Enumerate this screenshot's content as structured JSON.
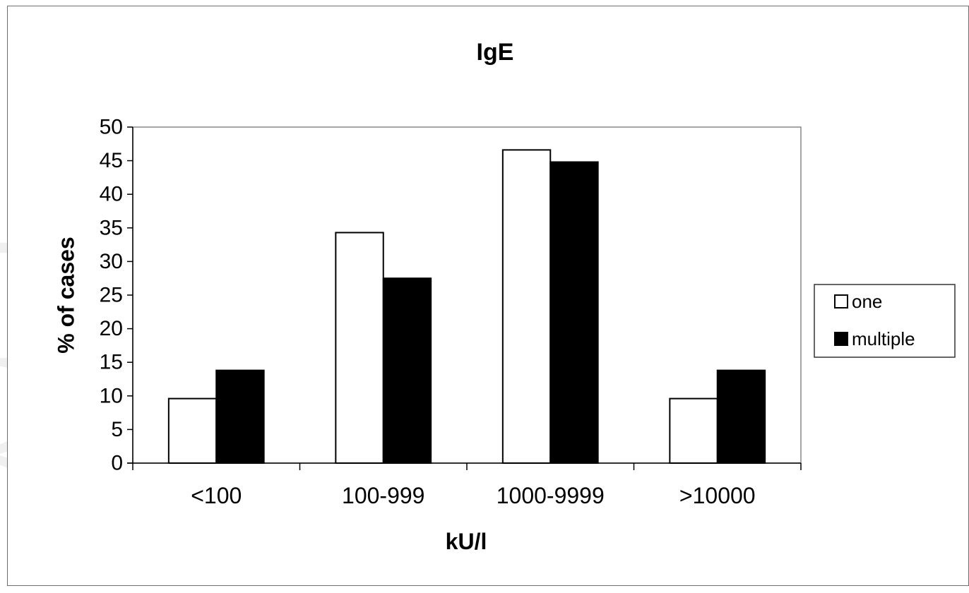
{
  "watermark": "Article",
  "chart_data": {
    "type": "bar",
    "title": "IgE",
    "xlabel": "kU/l",
    "ylabel": "% of cases",
    "ylim": [
      0,
      50
    ],
    "yticks": [
      0,
      5,
      10,
      15,
      20,
      25,
      30,
      35,
      40,
      45,
      50
    ],
    "categories": [
      "<100",
      "100-999",
      "1000-9999",
      ">10000"
    ],
    "series": [
      {
        "name": "one",
        "values": [
          9.6,
          34.3,
          46.6,
          9.6
        ],
        "color": "#ffffff"
      },
      {
        "name": "multiple",
        "values": [
          13.8,
          27.5,
          44.8,
          13.8
        ],
        "color": "#000000"
      }
    ],
    "legend_position": "right",
    "grid": false
  }
}
